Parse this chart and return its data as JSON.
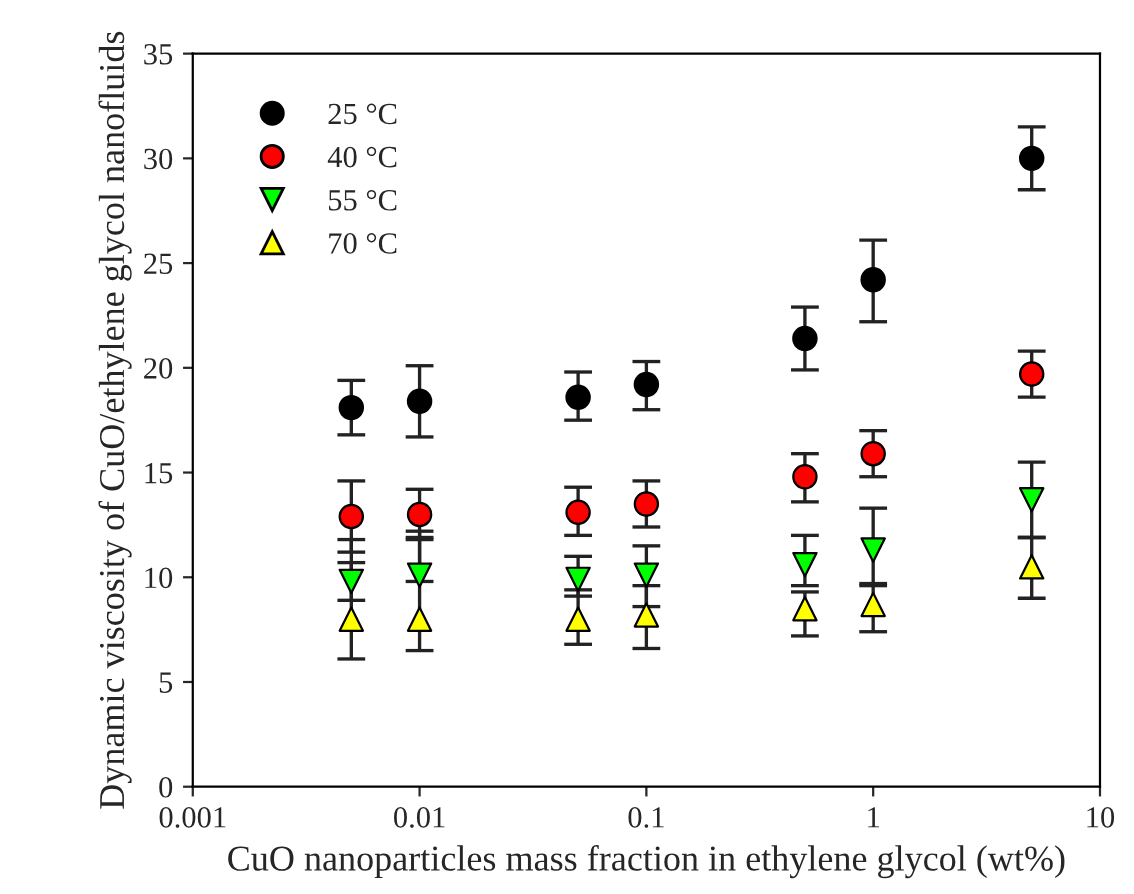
{
  "chart_data": {
    "type": "scatter",
    "xlabel": "CuO nanoparticles mass fraction in ethylene glycol (wt%)",
    "ylabel": "Dynamic viscosity of CuO/ethylene glycol nanofluids",
    "x": [
      0.005,
      0.01,
      0.05,
      0.1,
      0.5,
      1,
      5
    ],
    "series": [
      {
        "name": "25 °C",
        "color": "#000000",
        "marker": "circle",
        "values": [
          18.1,
          18.4,
          18.6,
          19.2,
          21.4,
          24.2,
          30.0
        ],
        "errors": [
          [
            16.8,
            19.4
          ],
          [
            16.7,
            20.1
          ],
          [
            17.5,
            19.8
          ],
          [
            18.0,
            20.3
          ],
          [
            19.9,
            22.9
          ],
          [
            22.2,
            26.1
          ],
          [
            28.5,
            31.5
          ]
        ]
      },
      {
        "name": "40 °C",
        "color": "#ff0000",
        "marker": "circle",
        "values": [
          12.9,
          13.0,
          13.1,
          13.5,
          14.8,
          15.9,
          19.7
        ],
        "errors": [
          [
            11.2,
            14.6
          ],
          [
            11.8,
            14.2
          ],
          [
            12.0,
            14.3
          ],
          [
            12.4,
            14.6
          ],
          [
            13.6,
            15.9
          ],
          [
            14.8,
            17.0
          ],
          [
            18.6,
            20.8
          ]
        ]
      },
      {
        "name": "55 °C",
        "color": "#00ff00",
        "marker": "triangle_down",
        "values": [
          9.8,
          10.1,
          9.9,
          10.1,
          10.6,
          11.3,
          13.7
        ],
        "errors": [
          [
            8.9,
            10.7
          ],
          [
            9.8,
            12.2
          ],
          [
            9.1,
            11.0
          ],
          [
            8.6,
            11.5
          ],
          [
            9.6,
            12.0
          ],
          [
            9.6,
            13.3
          ],
          [
            11.9,
            15.5
          ]
        ]
      },
      {
        "name": "70 °C",
        "color": "#ffff00",
        "marker": "triangle",
        "values": [
          8.0,
          8.0,
          8.0,
          8.2,
          8.5,
          8.7,
          10.5
        ],
        "errors": [
          [
            6.1,
            11.8
          ],
          [
            6.5,
            11.9
          ],
          [
            6.8,
            9.4
          ],
          [
            6.6,
            9.6
          ],
          [
            7.2,
            9.3
          ],
          [
            7.4,
            9.7
          ],
          [
            9.0,
            11.9
          ]
        ]
      }
    ],
    "log": "x",
    "xlim": [
      0.001,
      10
    ],
    "xticks": [
      0.001,
      0.01,
      0.1,
      1,
      10
    ],
    "ylim": [
      0,
      35
    ],
    "yticks": [
      0,
      5,
      10,
      15,
      20,
      25,
      30,
      35
    ],
    "grid": false,
    "legend": "top left"
  }
}
